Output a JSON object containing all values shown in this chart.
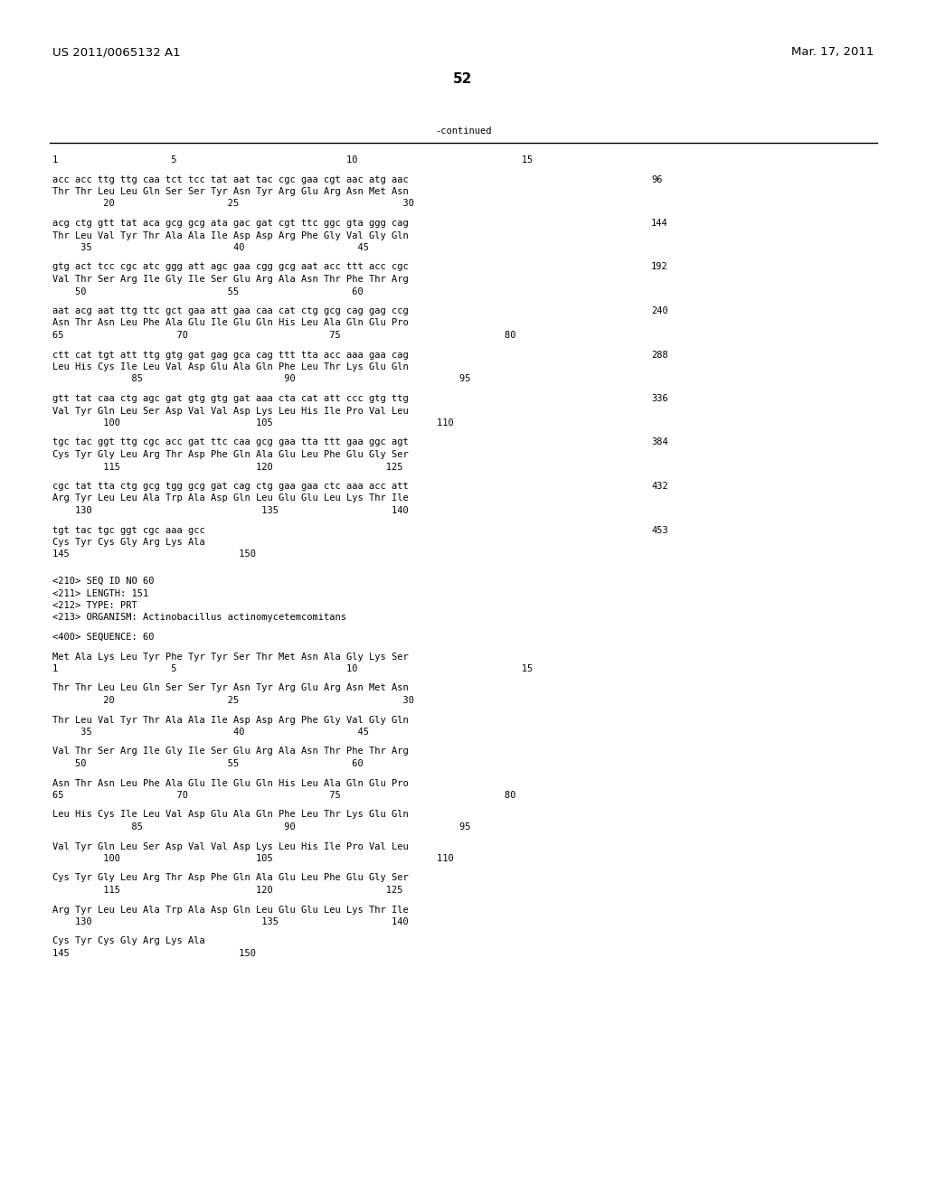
{
  "header_left": "US 2011/0065132 A1",
  "header_right": "Mar. 17, 2011",
  "page_number": "52",
  "continued_label": "-continued",
  "background_color": "#ffffff",
  "text_color": "#000000",
  "content_lines": [
    {
      "type": "ruler",
      "text": "1                    5                              10                             15",
      "indent": 0
    },
    {
      "type": "blank"
    },
    {
      "type": "seq",
      "text": "acc acc ttg ttg caa tct tcc tat aat tac cgc gaa cgt aac atg aac",
      "num": "96"
    },
    {
      "type": "aa",
      "text": "Thr Thr Leu Leu Gln Ser Ser Tyr Asn Tyr Arg Glu Arg Asn Met Asn"
    },
    {
      "type": "ruler",
      "text": "         20                    25                             30",
      "indent": 0
    },
    {
      "type": "blank"
    },
    {
      "type": "seq",
      "text": "acg ctg gtt tat aca gcg gcg ata gac gat cgt ttc ggc gta ggg cag",
      "num": "144"
    },
    {
      "type": "aa",
      "text": "Thr Leu Val Tyr Thr Ala Ala Ile Asp Asp Arg Phe Gly Val Gly Gln"
    },
    {
      "type": "ruler",
      "text": "     35                         40                    45",
      "indent": 0
    },
    {
      "type": "blank"
    },
    {
      "type": "seq",
      "text": "gtg act tcc cgc atc ggg att agc gaa cgg gcg aat acc ttt acc cgc",
      "num": "192"
    },
    {
      "type": "aa",
      "text": "Val Thr Ser Arg Ile Gly Ile Ser Glu Arg Ala Asn Thr Phe Thr Arg"
    },
    {
      "type": "ruler",
      "text": "    50                         55                    60",
      "indent": 0
    },
    {
      "type": "blank"
    },
    {
      "type": "seq",
      "text": "aat acg aat ttg ttc gct gaa att gaa caa cat ctg gcg cag gag ccg",
      "num": "240"
    },
    {
      "type": "aa",
      "text": "Asn Thr Asn Leu Phe Ala Glu Ile Glu Gln His Leu Ala Gln Glu Pro"
    },
    {
      "type": "ruler",
      "text": "65                    70                         75                             80",
      "indent": 0
    },
    {
      "type": "blank"
    },
    {
      "type": "seq",
      "text": "ctt cat tgt att ttg gtg gat gag gca cag ttt tta acc aaa gaa cag",
      "num": "288"
    },
    {
      "type": "aa",
      "text": "Leu His Cys Ile Leu Val Asp Glu Ala Gln Phe Leu Thr Lys Glu Gln"
    },
    {
      "type": "ruler",
      "text": "              85                         90                             95",
      "indent": 0
    },
    {
      "type": "blank"
    },
    {
      "type": "seq",
      "text": "gtt tat caa ctg agc gat gtg gtg gat aaa cta cat att ccc gtg ttg",
      "num": "336"
    },
    {
      "type": "aa",
      "text": "Val Tyr Gln Leu Ser Asp Val Val Asp Lys Leu His Ile Pro Val Leu"
    },
    {
      "type": "ruler",
      "text": "         100                        105                             110",
      "indent": 0
    },
    {
      "type": "blank"
    },
    {
      "type": "seq",
      "text": "tgc tac ggt ttg cgc acc gat ttc caa gcg gaa tta ttt gaa ggc agt",
      "num": "384"
    },
    {
      "type": "aa",
      "text": "Cys Tyr Gly Leu Arg Thr Asp Phe Gln Ala Glu Leu Phe Glu Gly Ser"
    },
    {
      "type": "ruler",
      "text": "         115                        120                    125",
      "indent": 0
    },
    {
      "type": "blank"
    },
    {
      "type": "seq",
      "text": "cgc tat tta ctg gcg tgg gcg gat cag ctg gaa gaa ctc aaa acc att",
      "num": "432"
    },
    {
      "type": "aa",
      "text": "Arg Tyr Leu Leu Ala Trp Ala Asp Gln Leu Glu Glu Leu Lys Thr Ile"
    },
    {
      "type": "ruler",
      "text": "    130                              135                    140",
      "indent": 0
    },
    {
      "type": "blank"
    },
    {
      "type": "seq",
      "text": "tgt tac tgc ggt cgc aaa gcc",
      "num": "453"
    },
    {
      "type": "aa",
      "text": "Cys Tyr Cys Gly Arg Lys Ala"
    },
    {
      "type": "ruler",
      "text": "145                              150",
      "indent": 0
    },
    {
      "type": "blank"
    },
    {
      "type": "blank"
    },
    {
      "type": "meta",
      "text": "<210> SEQ ID NO 60"
    },
    {
      "type": "meta",
      "text": "<211> LENGTH: 151"
    },
    {
      "type": "meta",
      "text": "<212> TYPE: PRT"
    },
    {
      "type": "meta",
      "text": "<213> ORGANISM: Actinobacillus actinomycetemcomitans"
    },
    {
      "type": "blank"
    },
    {
      "type": "meta",
      "text": "<400> SEQUENCE: 60"
    },
    {
      "type": "blank"
    },
    {
      "type": "aa",
      "text": "Met Ala Lys Leu Tyr Phe Tyr Tyr Ser Thr Met Asn Ala Gly Lys Ser"
    },
    {
      "type": "ruler",
      "text": "1                    5                              10                             15",
      "indent": 0
    },
    {
      "type": "blank"
    },
    {
      "type": "aa",
      "text": "Thr Thr Leu Leu Gln Ser Ser Tyr Asn Tyr Arg Glu Arg Asn Met Asn"
    },
    {
      "type": "ruler",
      "text": "         20                    25                             30",
      "indent": 0
    },
    {
      "type": "blank"
    },
    {
      "type": "aa",
      "text": "Thr Leu Val Tyr Thr Ala Ala Ile Asp Asp Arg Phe Gly Val Gly Gln"
    },
    {
      "type": "ruler",
      "text": "     35                         40                    45",
      "indent": 0
    },
    {
      "type": "blank"
    },
    {
      "type": "aa",
      "text": "Val Thr Ser Arg Ile Gly Ile Ser Glu Arg Ala Asn Thr Phe Thr Arg"
    },
    {
      "type": "ruler",
      "text": "    50                         55                    60",
      "indent": 0
    },
    {
      "type": "blank"
    },
    {
      "type": "aa",
      "text": "Asn Thr Asn Leu Phe Ala Glu Ile Glu Gln His Leu Ala Gln Glu Pro"
    },
    {
      "type": "ruler",
      "text": "65                    70                         75                             80",
      "indent": 0
    },
    {
      "type": "blank"
    },
    {
      "type": "aa",
      "text": "Leu His Cys Ile Leu Val Asp Glu Ala Gln Phe Leu Thr Lys Glu Gln"
    },
    {
      "type": "ruler",
      "text": "              85                         90                             95",
      "indent": 0
    },
    {
      "type": "blank"
    },
    {
      "type": "aa",
      "text": "Val Tyr Gln Leu Ser Asp Val Val Asp Lys Leu His Ile Pro Val Leu"
    },
    {
      "type": "ruler",
      "text": "         100                        105                             110",
      "indent": 0
    },
    {
      "type": "blank"
    },
    {
      "type": "aa",
      "text": "Cys Tyr Gly Leu Arg Thr Asp Phe Gln Ala Glu Leu Phe Glu Gly Ser"
    },
    {
      "type": "ruler",
      "text": "         115                        120                    125",
      "indent": 0
    },
    {
      "type": "blank"
    },
    {
      "type": "aa",
      "text": "Arg Tyr Leu Leu Ala Trp Ala Asp Gln Leu Glu Glu Leu Lys Thr Ile"
    },
    {
      "type": "ruler",
      "text": "    130                              135                    140",
      "indent": 0
    },
    {
      "type": "blank"
    },
    {
      "type": "aa",
      "text": "Cys Tyr Cys Gly Arg Lys Ala"
    },
    {
      "type": "ruler",
      "text": "145                              150",
      "indent": 0
    }
  ]
}
